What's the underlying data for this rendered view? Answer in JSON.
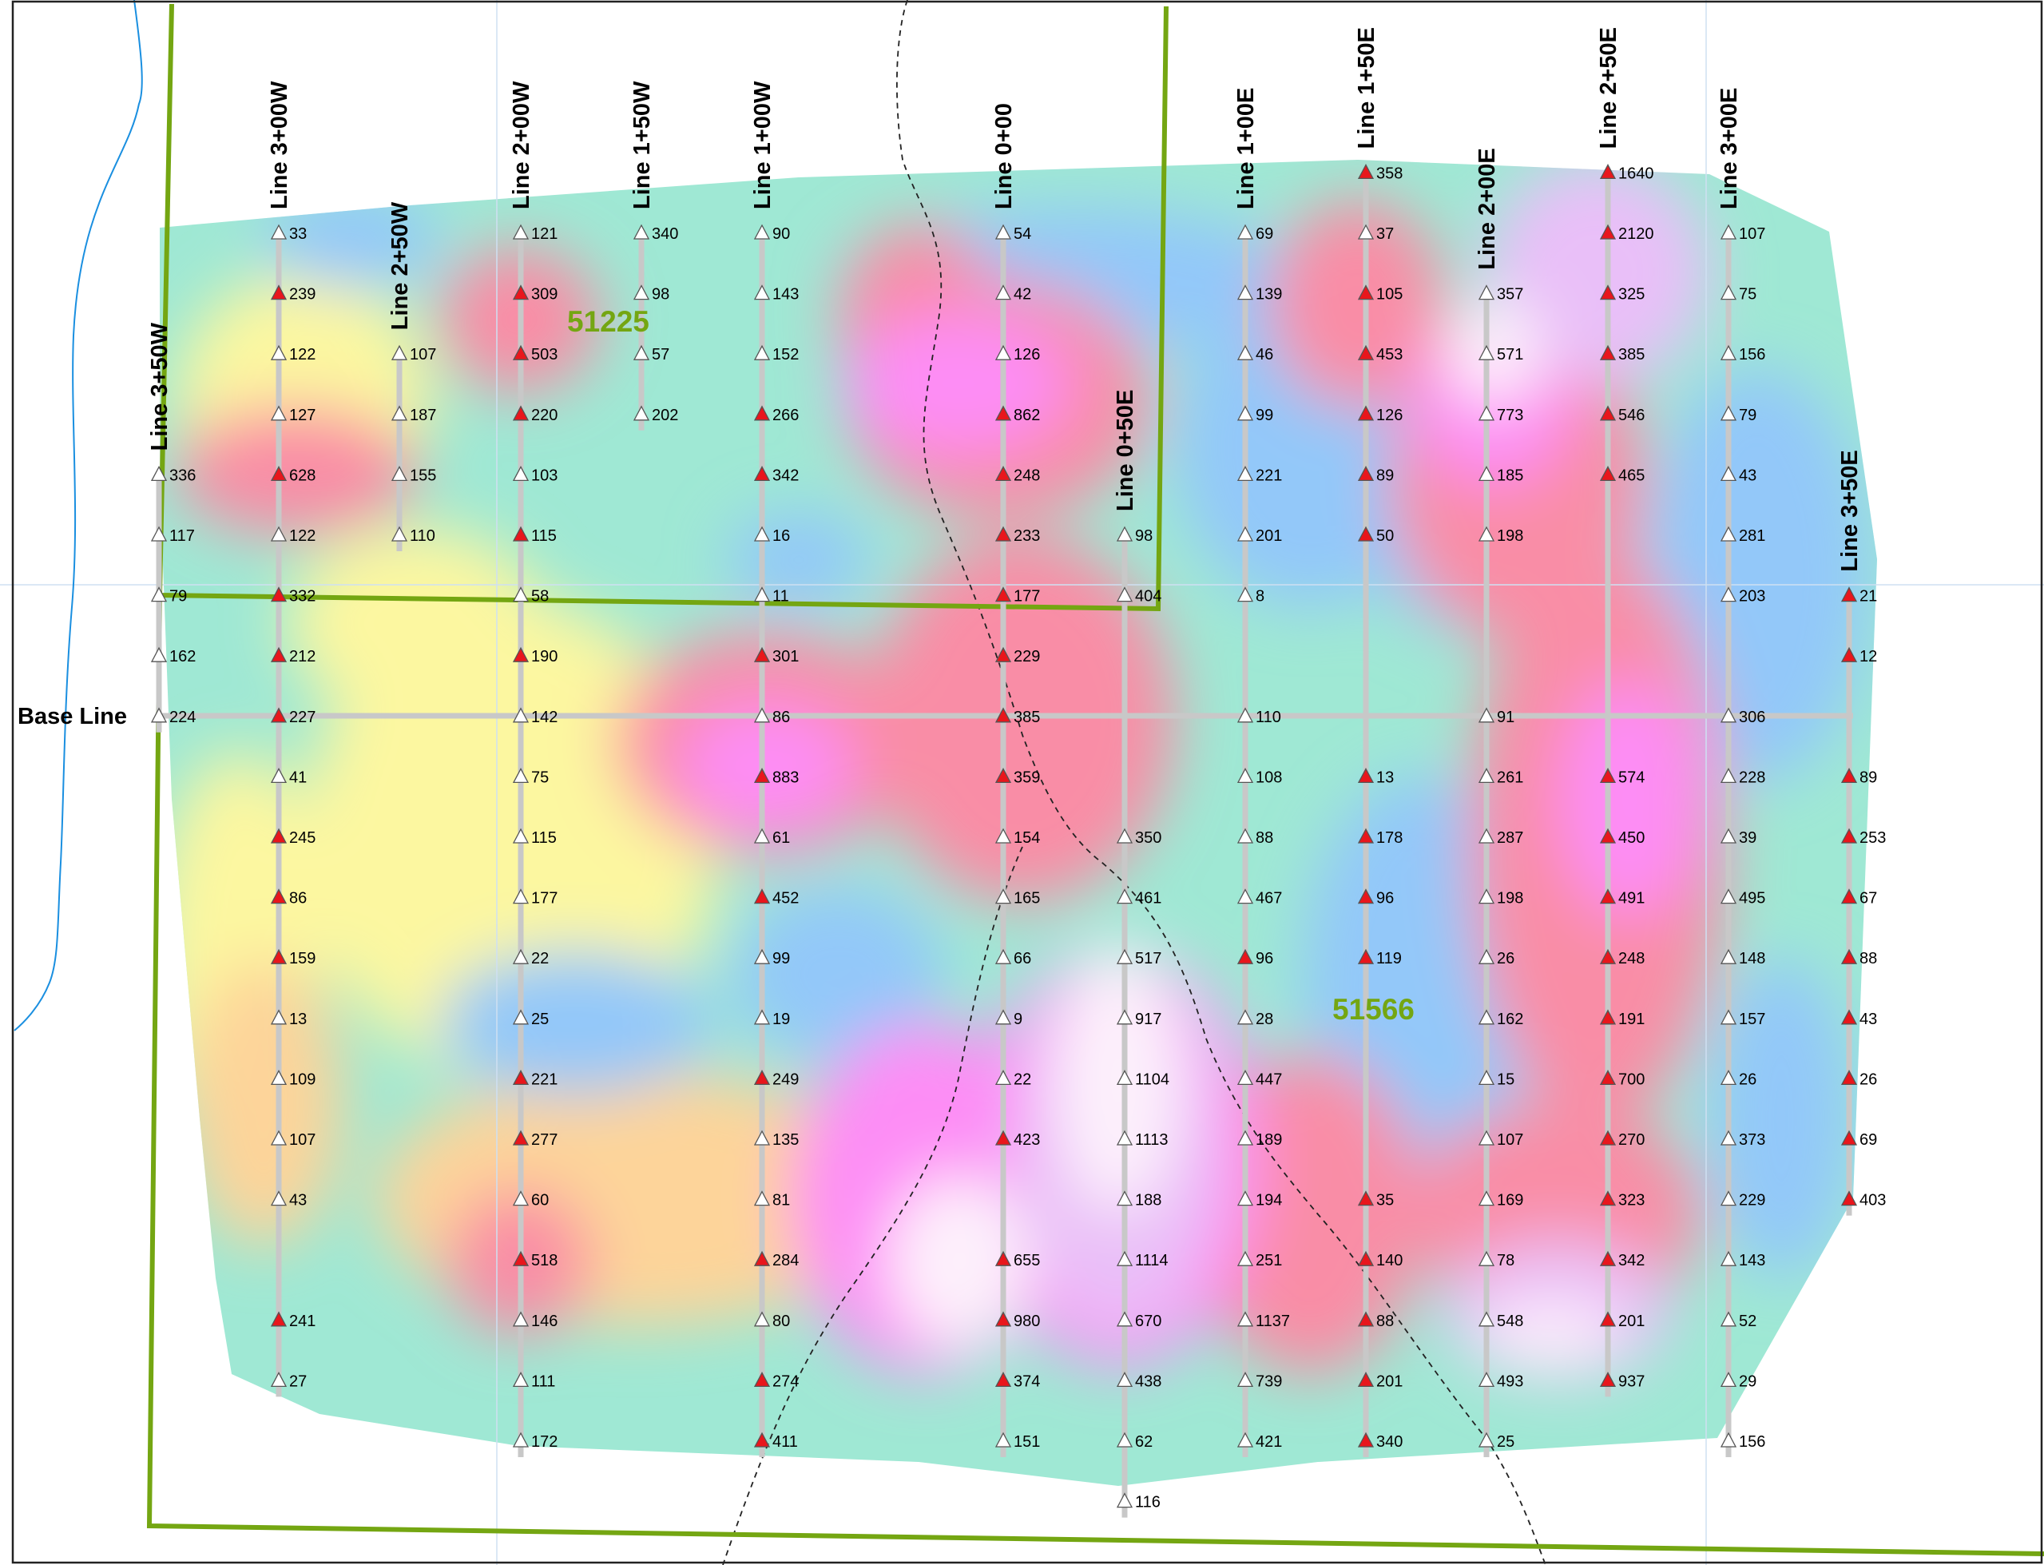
{
  "map": {
    "title": "",
    "base_line": "Base Line",
    "claims": [
      "51225",
      "51566"
    ],
    "colors": {
      "claim_boundary": "#74a612",
      "creek": "#1a8fe0",
      "survey_line": "#c8c8c8",
      "anomalous": "#e8161c",
      "background": "#ffffff"
    },
    "symbols": {
      "anomalous": "red-triangle",
      "normal": "white-triangle"
    }
  },
  "lines": [
    {
      "name": "Line 3+50W",
      "values": [
        336,
        117,
        79,
        162,
        224
      ],
      "high": [
        false,
        false,
        false,
        false,
        false
      ]
    },
    {
      "name": "Line 3+00W",
      "values": [
        33,
        239,
        122,
        127,
        628,
        122,
        332,
        212,
        227,
        41,
        245,
        86,
        159,
        13,
        109,
        107,
        43,
        241,
        27
      ],
      "high": [
        false,
        true,
        false,
        false,
        true,
        false,
        true,
        true,
        true,
        false,
        true,
        true,
        true,
        false,
        false,
        false,
        false,
        true,
        false
      ]
    },
    {
      "name": "Line 2+50W",
      "values": [
        107,
        187,
        155,
        110
      ],
      "high": [
        false,
        false,
        false,
        false
      ]
    },
    {
      "name": "Line 2+00W",
      "values": [
        121,
        309,
        503,
        220,
        103,
        115,
        58,
        190,
        142,
        75,
        115,
        177,
        22,
        25,
        221,
        277,
        60,
        518,
        146,
        111,
        172
      ],
      "high": [
        false,
        true,
        true,
        true,
        false,
        true,
        false,
        true,
        false,
        false,
        false,
        false,
        false,
        false,
        true,
        true,
        false,
        true,
        false,
        false,
        false
      ]
    },
    {
      "name": "Line 1+50W",
      "values": [
        340,
        98,
        57,
        202
      ],
      "high": [
        false,
        false,
        false,
        false
      ]
    },
    {
      "name": "Line 1+00W",
      "values": [
        90,
        143,
        152,
        266,
        342,
        16,
        11,
        301,
        86,
        883,
        61,
        452,
        99,
        19,
        249,
        135,
        81,
        284,
        80,
        274,
        411
      ],
      "high": [
        false,
        false,
        false,
        true,
        true,
        false,
        false,
        true,
        false,
        true,
        false,
        true,
        false,
        false,
        true,
        false,
        false,
        true,
        false,
        true,
        true
      ]
    },
    {
      "name": "Line 0+00",
      "values": [
        54,
        42,
        126,
        862,
        248,
        233,
        177,
        229,
        385,
        359,
        154,
        165,
        66,
        9,
        22,
        423,
        655,
        980,
        374,
        151
      ],
      "high": [
        false,
        false,
        false,
        true,
        true,
        true,
        true,
        true,
        true,
        true,
        false,
        false,
        false,
        false,
        false,
        true,
        true,
        true,
        true,
        false
      ]
    },
    {
      "name": "Line 0+50E",
      "values": [
        98,
        404,
        350,
        461,
        517,
        917,
        1104,
        1113,
        188,
        1114,
        670,
        438,
        62,
        116
      ],
      "high": [
        false,
        false,
        false,
        false,
        false,
        false,
        false,
        false,
        false,
        false,
        false,
        false,
        false,
        false
      ]
    },
    {
      "name": "Line 1+00E",
      "values": [
        69,
        139,
        46,
        99,
        221,
        201,
        8,
        110,
        108,
        88,
        467,
        96,
        28,
        447,
        189,
        194,
        251,
        1137,
        739,
        421
      ],
      "high": [
        false,
        false,
        false,
        false,
        false,
        false,
        false,
        false,
        false,
        false,
        false,
        true,
        false,
        false,
        false,
        false,
        false,
        false,
        false,
        false
      ]
    },
    {
      "name": "Line 1+50E",
      "values": [
        358,
        37,
        105,
        453,
        126,
        89,
        50,
        13,
        178,
        96,
        119,
        35,
        140,
        88,
        201,
        340
      ],
      "high": [
        true,
        false,
        true,
        true,
        true,
        true,
        true,
        true,
        true,
        true,
        true,
        true,
        true,
        true,
        true,
        true
      ]
    },
    {
      "name": "Line 2+00E",
      "values": [
        357,
        571,
        773,
        185,
        198,
        91,
        261,
        287,
        198,
        26,
        162,
        15,
        107,
        169,
        78,
        548,
        493,
        25
      ],
      "high": [
        false,
        false,
        false,
        false,
        false,
        false,
        false,
        false,
        false,
        false,
        false,
        false,
        false,
        false,
        false,
        false,
        false,
        false
      ]
    },
    {
      "name": "Line 2+50E",
      "values": [
        1640,
        2120,
        325,
        385,
        546,
        465,
        574,
        450,
        491,
        248,
        191,
        700,
        270,
        323,
        342,
        201,
        937
      ],
      "high": [
        true,
        true,
        true,
        true,
        true,
        true,
        true,
        true,
        true,
        true,
        true,
        true,
        true,
        true,
        true,
        true,
        true
      ]
    },
    {
      "name": "Line 3+00E",
      "values": [
        107,
        75,
        156,
        79,
        43,
        281,
        203,
        306,
        228,
        39,
        495,
        148,
        157,
        26,
        373,
        229,
        143,
        52,
        29,
        156
      ],
      "high": [
        false,
        false,
        false,
        false,
        false,
        false,
        false,
        false,
        false,
        false,
        false,
        false,
        false,
        false,
        false,
        false,
        false,
        false,
        false,
        false
      ]
    },
    {
      "name": "Line 3+50E",
      "values": [
        21,
        12,
        89,
        253,
        67,
        88,
        43,
        26,
        69,
        403
      ],
      "high": [
        true,
        true,
        true,
        true,
        true,
        true,
        true,
        true,
        true,
        true
      ]
    }
  ]
}
